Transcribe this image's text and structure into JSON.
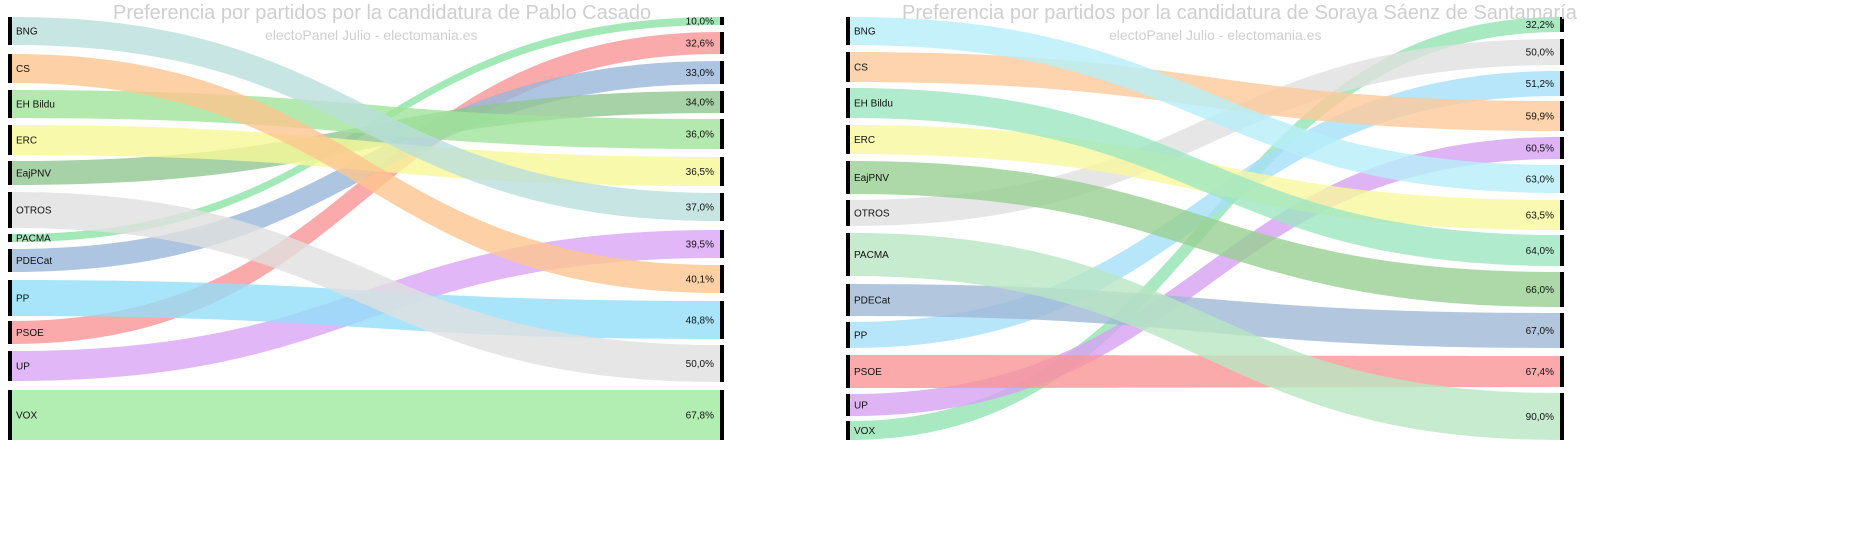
{
  "chart_data": [
    {
      "type": "sankey",
      "title": "Preferencia por partidos por la candidatura de Pablo Casado",
      "subtitle": "electoPanel Julio - electomania.es",
      "left": [
        {
          "name": "BNG",
          "color": "#b9dfdb"
        },
        {
          "name": "CS",
          "color": "#fdc58e"
        },
        {
          "name": "EH Bildu",
          "color": "#a0e39a"
        },
        {
          "name": "ERC",
          "color": "#f7f797"
        },
        {
          "name": "EajPNV",
          "color": "#91c591"
        },
        {
          "name": "OTROS",
          "color": "#e0e0e0"
        },
        {
          "name": "PACMA",
          "color": "#8ce3a6"
        },
        {
          "name": "PDECat",
          "color": "#98b7d9"
        },
        {
          "name": "PP",
          "color": "#94def9"
        },
        {
          "name": "PSOE",
          "color": "#f99596"
        },
        {
          "name": "UP",
          "color": "#d9a5f6"
        },
        {
          "name": "VOX",
          "color": "#9fe89d"
        }
      ],
      "right": [
        {
          "value": "10,0%",
          "source": "PACMA"
        },
        {
          "value": "32,6%",
          "source": "PSOE"
        },
        {
          "value": "33,0%",
          "source": "PDECat"
        },
        {
          "value": "34,0%",
          "source": "EajPNV"
        },
        {
          "value": "36,0%",
          "source": "EH Bildu"
        },
        {
          "value": "36,5%",
          "source": "ERC"
        },
        {
          "value": "37,0%",
          "source": "BNG"
        },
        {
          "value": "39,5%",
          "source": "UP"
        },
        {
          "value": "40,1%",
          "source": "CS"
        },
        {
          "value": "48,8%",
          "source": "PP"
        },
        {
          "value": "50,0%",
          "source": "OTROS"
        },
        {
          "value": "67,8%",
          "source": "VOX"
        }
      ]
    },
    {
      "type": "sankey",
      "title": "Preferencia por partidos por la candidatura de Soraya Sáenz de Santamaría",
      "subtitle": "electoPanel Julio - electomania.es",
      "left": [
        {
          "name": "BNG",
          "color": "#b7eff9"
        },
        {
          "name": "CS",
          "color": "#fdc99a"
        },
        {
          "name": "EH Bildu",
          "color": "#9de6c1"
        },
        {
          "name": "ERC",
          "color": "#f7f79d"
        },
        {
          "name": "EajPNV",
          "color": "#97cf91"
        },
        {
          "name": "OTROS",
          "color": "#e0e0e0"
        },
        {
          "name": "PACMA",
          "color": "#b9e6c3"
        },
        {
          "name": "PDECat",
          "color": "#9fb9d6"
        },
        {
          "name": "PP",
          "color": "#a5def8"
        },
        {
          "name": "PSOE",
          "color": "#f99596"
        },
        {
          "name": "UP",
          "color": "#d6a1f3"
        },
        {
          "name": "VOX",
          "color": "#93e4b2"
        }
      ],
      "right": [
        {
          "value": "32,2%",
          "source": "VOX"
        },
        {
          "value": "50,0%",
          "source": "OTROS"
        },
        {
          "value": "51,2%",
          "source": "PP"
        },
        {
          "value": "59,9%",
          "source": "CS"
        },
        {
          "value": "60,5%",
          "source": "UP"
        },
        {
          "value": "63,0%",
          "source": "BNG"
        },
        {
          "value": "63,5%",
          "source": "ERC"
        },
        {
          "value": "64,0%",
          "source": "EH Bildu"
        },
        {
          "value": "66,0%",
          "source": "EajPNV"
        },
        {
          "value": "67,0%",
          "source": "PDECat"
        },
        {
          "value": "67,4%",
          "source": "PSOE"
        },
        {
          "value": "90,0%",
          "source": "PACMA"
        }
      ]
    }
  ]
}
